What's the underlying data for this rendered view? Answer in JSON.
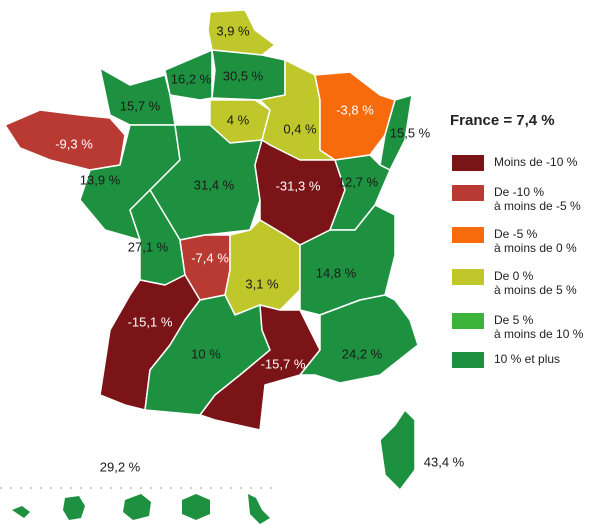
{
  "title": "France = 7,4 %",
  "regions": [
    {
      "label": "3,9 %",
      "color": "#bfc72a"
    },
    {
      "label": "30,5 %",
      "color": "#1e9141"
    },
    {
      "label": "16,2 %",
      "color": "#1e9141"
    },
    {
      "label": "15,7 %",
      "color": "#1e9141"
    },
    {
      "label": "-9,3 %",
      "color": "#b83a32"
    },
    {
      "label": "4 %",
      "color": "#bfc72a"
    },
    {
      "label": "0,4 %",
      "color": "#bfc72a"
    },
    {
      "label": "-3,8 %",
      "color": "#f76b0d"
    },
    {
      "label": "15,5 %",
      "color": "#1e9141"
    },
    {
      "label": "13,9 %",
      "color": "#1e9141"
    },
    {
      "label": "31,4 %",
      "color": "#1e9141"
    },
    {
      "label": "-31,3 %",
      "color": "#7b1416"
    },
    {
      "label": "12,7 %",
      "color": "#1e9141"
    },
    {
      "label": "27,1 %",
      "color": "#1e9141"
    },
    {
      "label": "-7,4 %",
      "color": "#b83a32"
    },
    {
      "label": "3,1 %",
      "color": "#bfc72a"
    },
    {
      "label": "14,8 %",
      "color": "#1e9141"
    },
    {
      "label": "-15,1 %",
      "color": "#7b1416"
    },
    {
      "label": "10 %",
      "color": "#1e9141"
    },
    {
      "label": "-15,7 %",
      "color": "#7b1416"
    },
    {
      "label": "24,2 %",
      "color": "#1e9141"
    },
    {
      "label": "43,4 %",
      "color": "#1e9141"
    }
  ],
  "overseas": {
    "label": "29,2 %",
    "color": "#1e9141"
  },
  "legend": [
    {
      "lines": [
        "Moins de -10 %"
      ],
      "color": "#7b1416"
    },
    {
      "lines": [
        "De -10 %",
        "à moins de -5 %"
      ],
      "color": "#b83a32"
    },
    {
      "lines": [
        "De -5 %",
        "à moins de 0 %"
      ],
      "color": "#f76b0d"
    },
    {
      "lines": [
        "De 0 %",
        "à moins de 5 %"
      ],
      "color": "#bfc72a"
    },
    {
      "lines": [
        "De 5 %",
        "à moins de 10 %"
      ],
      "color": "#3cb43c"
    },
    {
      "lines": [
        "10 % et plus"
      ],
      "color": "#1e9141"
    }
  ]
}
